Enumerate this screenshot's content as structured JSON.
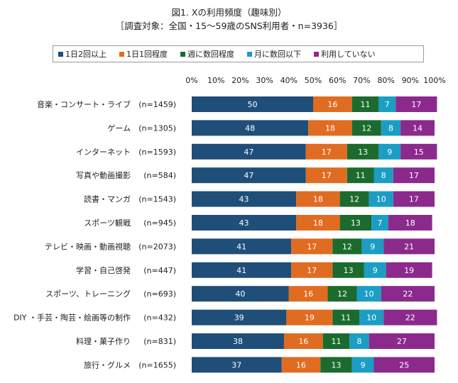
{
  "chart_data": {
    "type": "bar",
    "orientation": "horizontal",
    "stacked": true,
    "title": "図1. Xの利用頻度（趣味別）",
    "subtitle": "［調査対象：全国・15～59歳のSNS利用者・n=3936］",
    "xlim": [
      0,
      100
    ],
    "xticks": [
      "0%",
      "10%",
      "20%",
      "30%",
      "40%",
      "50%",
      "60%",
      "70%",
      "80%",
      "90%",
      "100%"
    ],
    "legend_position": "top",
    "categories": [
      {
        "label": "音楽・コンサート・ライブ",
        "n": "(n=1459)"
      },
      {
        "label": "ゲーム",
        "n": "(n=1305)"
      },
      {
        "label": "インターネット",
        "n": "(n=1593)"
      },
      {
        "label": "写真や動画撮影",
        "n": "(n=584)"
      },
      {
        "label": "読書・マンガ",
        "n": "(n=1543)"
      },
      {
        "label": "スポーツ観戦",
        "n": "(n=945)"
      },
      {
        "label": "テレビ・映画・動画視聴",
        "n": "(n=2073)"
      },
      {
        "label": "学習・自己啓発",
        "n": "(n=447)"
      },
      {
        "label": "スポーツ、トレーニング",
        "n": "(n=693)"
      },
      {
        "label": "DIY ・手芸・陶芸・絵画等の制作",
        "n": "(n=432)"
      },
      {
        "label": "料理・菓子作り",
        "n": "(n=831)"
      },
      {
        "label": "旅行・グルメ",
        "n": "(n=1655)"
      }
    ],
    "series": [
      {
        "name": "1日2回以上",
        "color": "#1f4e79",
        "values": [
          50,
          48,
          47,
          47,
          43,
          43,
          41,
          41,
          40,
          39,
          38,
          37
        ]
      },
      {
        "name": "1日1回程度",
        "color": "#e06c22",
        "values": [
          16,
          18,
          17,
          17,
          18,
          18,
          17,
          17,
          16,
          19,
          16,
          16
        ]
      },
      {
        "name": "週に数回程度",
        "color": "#1c6b2e",
        "values": [
          11,
          12,
          13,
          11,
          12,
          13,
          12,
          13,
          12,
          11,
          11,
          13
        ]
      },
      {
        "name": "月に数回以下",
        "color": "#1b9dc4",
        "values": [
          7,
          8,
          9,
          8,
          10,
          7,
          9,
          9,
          10,
          10,
          8,
          9
        ]
      },
      {
        "name": "利用していない",
        "color": "#8b2a8c",
        "values": [
          17,
          14,
          15,
          17,
          17,
          18,
          21,
          19,
          22,
          22,
          27,
          25
        ]
      }
    ]
  }
}
